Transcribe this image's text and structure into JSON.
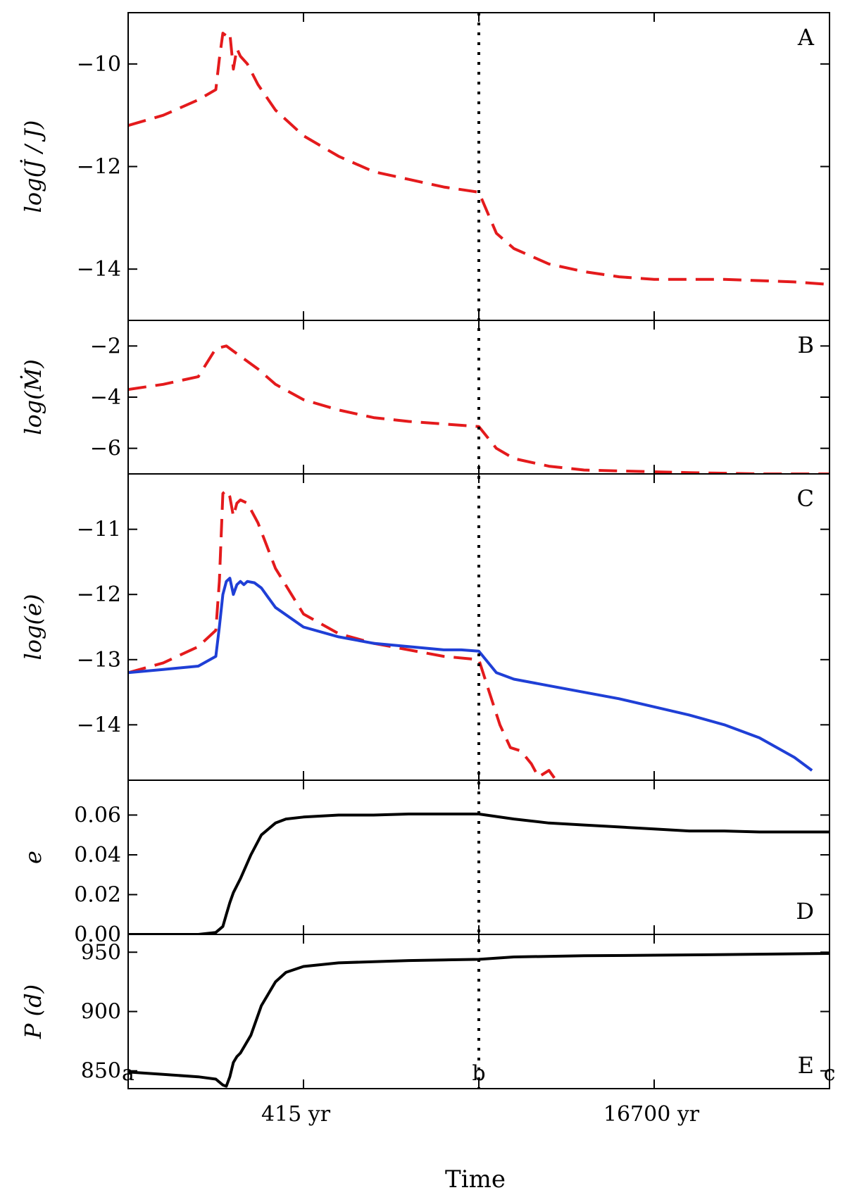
{
  "chart_data": [
    {
      "type": "line",
      "panel_label": "A",
      "ylabel": "log(J̇ / J)",
      "ylim": [
        -15.0,
        -9.0
      ],
      "yticks": [
        -10,
        -12,
        -14
      ],
      "ytick_labels": [
        "−10",
        "−12",
        "−14"
      ],
      "x_segments": [
        "a",
        "b",
        "c"
      ],
      "series": [
        {
          "color": "#e41a1c",
          "style": "dashed",
          "x": [
            0,
            0.1,
            0.2,
            0.25,
            0.26,
            0.27,
            0.28,
            0.29,
            0.3,
            0.31,
            0.32,
            0.34,
            0.37,
            0.42,
            0.5,
            0.6,
            0.7,
            0.8,
            0.9,
            1.0,
            1.05,
            1.1,
            1.2,
            1.3,
            1.4,
            1.5,
            1.7,
            1.9,
            2.0
          ],
          "y": [
            -11.2,
            -11.0,
            -10.7,
            -10.5,
            -9.9,
            -9.4,
            -9.45,
            -9.4,
            -10.1,
            -9.7,
            -9.85,
            -10.0,
            -10.4,
            -10.9,
            -11.4,
            -11.8,
            -12.1,
            -12.25,
            -12.4,
            -12.5,
            -13.3,
            -13.6,
            -13.9,
            -14.05,
            -14.15,
            -14.2,
            -14.2,
            -14.25,
            -14.3
          ]
        }
      ]
    },
    {
      "type": "line",
      "panel_label": "B",
      "ylabel": "log(Ṁ)",
      "ylim": [
        -7.0,
        -1.0
      ],
      "yticks": [
        -2,
        -4,
        -6
      ],
      "ytick_labels": [
        "−2",
        "−4",
        "−6"
      ],
      "x_segments": [
        "a",
        "b",
        "c"
      ],
      "series": [
        {
          "color": "#e41a1c",
          "style": "dashed",
          "x": [
            0,
            0.1,
            0.2,
            0.25,
            0.28,
            0.3,
            0.32,
            0.34,
            0.37,
            0.42,
            0.5,
            0.6,
            0.7,
            0.8,
            0.9,
            1.0,
            1.05,
            1.1,
            1.2,
            1.3,
            1.45,
            1.6,
            1.8,
            2.0
          ],
          "y": [
            -3.7,
            -3.5,
            -3.2,
            -2.1,
            -2.0,
            -2.2,
            -2.4,
            -2.6,
            -2.9,
            -3.5,
            -4.1,
            -4.5,
            -4.8,
            -4.95,
            -5.05,
            -5.15,
            -6.0,
            -6.4,
            -6.7,
            -6.85,
            -6.9,
            -6.95,
            -7.0,
            -7.0
          ]
        }
      ]
    },
    {
      "type": "line",
      "panel_label": "C",
      "ylabel": "log(ė)",
      "ylim": [
        -14.85,
        -10.15
      ],
      "yticks": [
        -11,
        -12,
        -13,
        -14
      ],
      "ytick_labels": [
        "−11",
        "−12",
        "−13",
        "−14"
      ],
      "x_segments": [
        "a",
        "b",
        "c"
      ],
      "series": [
        {
          "color": "#e41a1c",
          "style": "dashed",
          "x": [
            0,
            0.1,
            0.2,
            0.25,
            0.26,
            0.27,
            0.28,
            0.29,
            0.3,
            0.31,
            0.32,
            0.34,
            0.37,
            0.42,
            0.5,
            0.6,
            0.7,
            0.8,
            0.9,
            1.0,
            1.03,
            1.06,
            1.09,
            1.12,
            1.15,
            1.17,
            1.2,
            1.22
          ],
          "y": [
            -13.2,
            -13.05,
            -12.8,
            -12.55,
            -11.8,
            -10.45,
            -10.4,
            -10.5,
            -10.8,
            -10.6,
            -10.55,
            -10.6,
            -10.9,
            -11.6,
            -12.3,
            -12.6,
            -12.75,
            -12.85,
            -12.95,
            -13.0,
            -13.5,
            -14.0,
            -14.35,
            -14.4,
            -14.6,
            -14.8,
            -14.7,
            -14.85
          ]
        },
        {
          "color": "#1f3fd6",
          "style": "solid",
          "x": [
            0,
            0.1,
            0.2,
            0.25,
            0.26,
            0.27,
            0.28,
            0.29,
            0.3,
            0.31,
            0.32,
            0.33,
            0.34,
            0.36,
            0.38,
            0.4,
            0.42,
            0.5,
            0.6,
            0.7,
            0.8,
            0.9,
            0.95,
            1.0,
            1.05,
            1.1,
            1.2,
            1.4,
            1.6,
            1.7,
            1.8,
            1.9,
            1.95
          ],
          "y": [
            -13.2,
            -13.15,
            -13.1,
            -12.95,
            -12.5,
            -12.0,
            -11.8,
            -11.75,
            -12.0,
            -11.85,
            -11.8,
            -11.85,
            -11.8,
            -11.82,
            -11.9,
            -12.05,
            -12.2,
            -12.5,
            -12.65,
            -12.75,
            -12.8,
            -12.85,
            -12.85,
            -12.87,
            -13.2,
            -13.3,
            -13.4,
            -13.6,
            -13.85,
            -14.0,
            -14.2,
            -14.5,
            -14.7
          ]
        }
      ]
    },
    {
      "type": "line",
      "panel_label": "D",
      "ylabel": "e",
      "ylim": [
        0.0,
        0.0775
      ],
      "yticks": [
        0.0,
        0.02,
        0.04,
        0.06
      ],
      "ytick_labels": [
        "0.00",
        "0.02",
        "0.04",
        "0.06"
      ],
      "x_segments": [
        "a",
        "b",
        "c"
      ],
      "series": [
        {
          "color": "#000000",
          "style": "solid",
          "x": [
            0,
            0.1,
            0.2,
            0.25,
            0.27,
            0.28,
            0.29,
            0.3,
            0.32,
            0.35,
            0.38,
            0.42,
            0.45,
            0.5,
            0.6,
            0.7,
            0.8,
            0.9,
            1.0,
            1.1,
            1.2,
            1.3,
            1.4,
            1.5,
            1.6,
            1.7,
            1.8,
            1.9,
            2.0
          ],
          "y": [
            0.0,
            0.0,
            0.0,
            0.001,
            0.004,
            0.01,
            0.016,
            0.021,
            0.028,
            0.04,
            0.05,
            0.056,
            0.058,
            0.059,
            0.06,
            0.06,
            0.0605,
            0.0605,
            0.0605,
            0.058,
            0.056,
            0.055,
            0.054,
            0.053,
            0.052,
            0.052,
            0.0515,
            0.0515,
            0.0515
          ]
        }
      ]
    },
    {
      "type": "line",
      "panel_label": "E",
      "ylabel": "P (d)",
      "ylim": [
        835.0,
        965.0
      ],
      "yticks": [
        850,
        900,
        950
      ],
      "ytick_labels": [
        "850",
        "900",
        "950"
      ],
      "x_segments": [
        "a",
        "b",
        "c"
      ],
      "series": [
        {
          "color": "#000000",
          "style": "solid",
          "x": [
            0,
            0.1,
            0.2,
            0.25,
            0.27,
            0.28,
            0.29,
            0.3,
            0.31,
            0.32,
            0.35,
            0.38,
            0.42,
            0.45,
            0.5,
            0.6,
            0.7,
            0.8,
            0.9,
            1.0,
            1.1,
            1.3,
            1.5,
            1.7,
            2.0
          ],
          "y": [
            849,
            847,
            845,
            843,
            838,
            837,
            845,
            857,
            862,
            865,
            880,
            905,
            925,
            933,
            938,
            941,
            942,
            943,
            943.5,
            944,
            946,
            947,
            947.5,
            948,
            949
          ]
        }
      ]
    }
  ],
  "xaxis": {
    "tick_labels": [
      "a",
      "b",
      "c"
    ],
    "segment_labels": [
      "415 yr",
      "16700 yr"
    ],
    "label": "Time"
  },
  "divider": {
    "at": "b",
    "style": "dotted"
  }
}
